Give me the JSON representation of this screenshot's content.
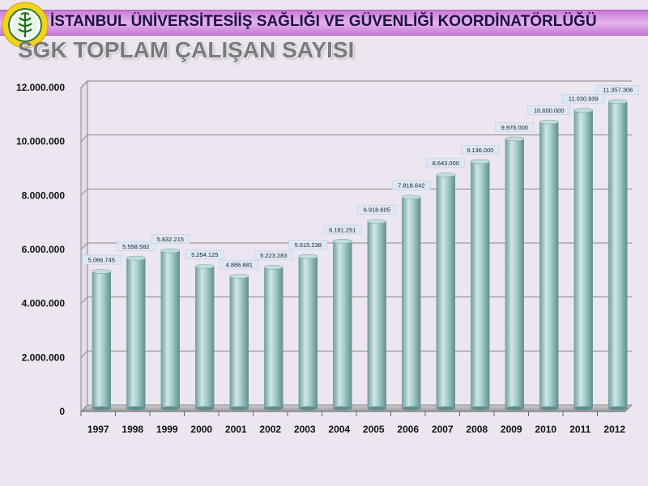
{
  "header": {
    "banner_text": "İSTANBUL ÜNİVERSİTESİİŞ SAĞLIĞI VE GÜVENLİĞİ KOORDİNATÖRLÜĞÜ",
    "logo_icon": "university-seal-icon"
  },
  "chart_data": {
    "type": "bar",
    "title": "SGK TOPLAM ÇALIŞAN SAYISI",
    "xlabel": "",
    "ylabel": "",
    "categories": [
      "1997",
      "1998",
      "1999",
      "2000",
      "2001",
      "2002",
      "2003",
      "2004",
      "2005",
      "2006",
      "2007",
      "2008",
      "2009",
      "2010",
      "2011",
      "2012"
    ],
    "values": [
      5066745,
      5558582,
      5832215,
      5254125,
      4886881,
      5223283,
      5615238,
      6181251,
      6918605,
      7818642,
      8643000,
      9136000,
      9976000,
      10600000,
      11030939,
      11357306
    ],
    "value_labels": [
      "5.066.745",
      "5.558.582",
      "5.832.215",
      "5.254.125",
      "4.886.881",
      "5.223.283",
      "5.615.238",
      "6.181.251",
      "6.918.605",
      "7.818.642",
      "8.643.000",
      "9.136.000",
      "9.976.000",
      "10.600.000",
      "11.030.939",
      "11.357.306"
    ],
    "ylim": [
      0,
      12000000
    ],
    "yticks": [
      0,
      2000000,
      4000000,
      6000000,
      8000000,
      10000000,
      12000000
    ],
    "ytick_labels": [
      "0",
      "2.000.000",
      "4.000.000",
      "6.000.000",
      "8.000.000",
      "10.000.000",
      "12.000.000"
    ],
    "grid": true,
    "legend": "none",
    "colors": {
      "bar": "#9fc4c4",
      "bar_dark": "#6e9c9c",
      "grid": "#888888",
      "label_box": "#dde8f6"
    }
  }
}
